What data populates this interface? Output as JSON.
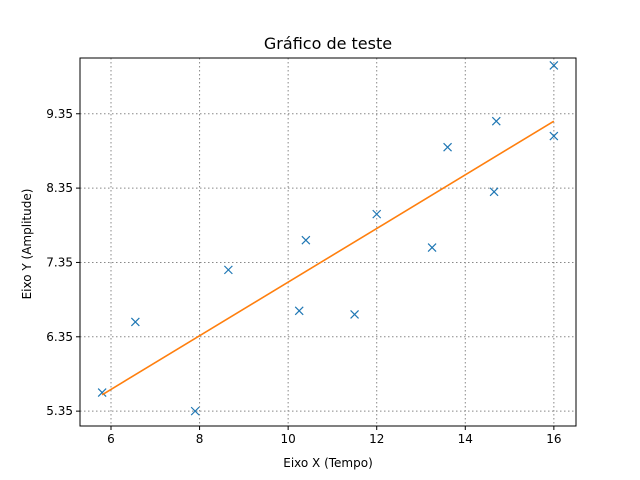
{
  "chart_data": {
    "type": "scatter",
    "title": "Gráfico de teste",
    "xlabel": "Eixo X (Tempo)",
    "ylabel": "Eixo Y (Amplitude)",
    "xlim": [
      5.3,
      16.5
    ],
    "ylim": [
      5.15,
      10.1
    ],
    "xticks": [
      6,
      8,
      10,
      12,
      14,
      16
    ],
    "yticks": [
      5.35,
      6.35,
      7.35,
      8.35,
      9.35
    ],
    "grid": true,
    "series": [
      {
        "kind": "scatter",
        "marker": "x",
        "color": "#1f77b4",
        "x": [
          5.8,
          6.55,
          7.9,
          8.65,
          10.25,
          10.4,
          11.5,
          12.0,
          13.25,
          13.6,
          14.65,
          14.7,
          16.0,
          16.0
        ],
        "y": [
          5.6,
          6.55,
          5.35,
          7.25,
          6.7,
          7.65,
          6.65,
          8.0,
          7.55,
          8.9,
          8.3,
          9.25,
          10.0,
          9.05
        ]
      },
      {
        "kind": "line",
        "color": "#ff7f0e",
        "x": [
          5.8,
          16.0
        ],
        "y": [
          5.57,
          9.25
        ]
      }
    ]
  }
}
